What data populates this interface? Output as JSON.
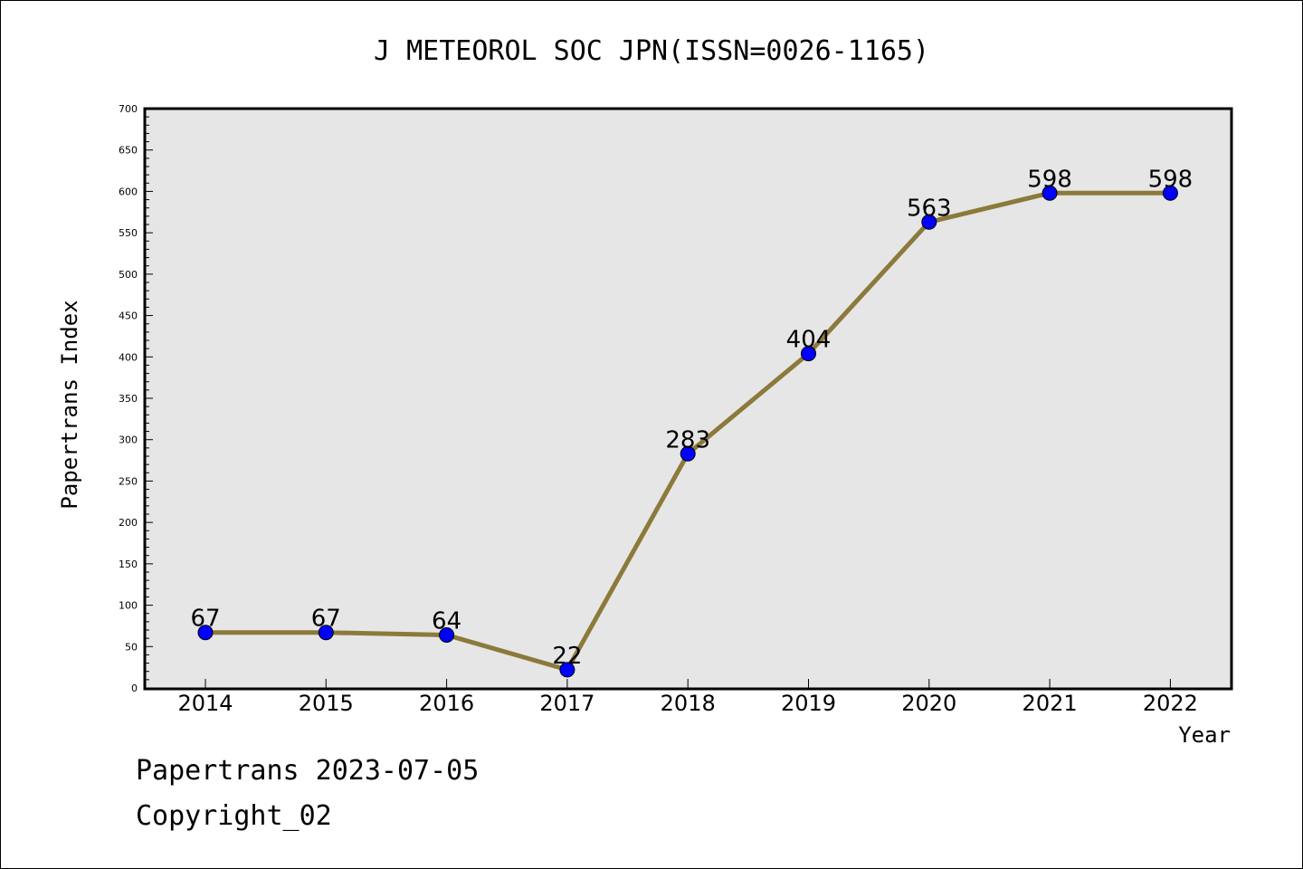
{
  "footer": {
    "line1": "Papertrans 2023-07-05",
    "line2": "Copyright_02"
  },
  "chart_data": {
    "type": "line",
    "title": "J METEOROL SOC JPN(ISSN=0026-1165)",
    "xlabel": "Year",
    "ylabel": "Papertrans Index",
    "categories": [
      "2014",
      "2015",
      "2016",
      "2017",
      "2018",
      "2019",
      "2020",
      "2021",
      "2022"
    ],
    "values": [
      67,
      67,
      64,
      22,
      283,
      404,
      563,
      598,
      598
    ],
    "ylim": [
      0,
      700
    ],
    "yticks": [
      0,
      50,
      100,
      150,
      200,
      250,
      300,
      350,
      400,
      450,
      500,
      550,
      600,
      650,
      700
    ],
    "grid": false,
    "legend": "none",
    "colors": {
      "line": "#8b7a3a",
      "marker": "#0000ff",
      "plot_bg": "#e6e6e6"
    }
  }
}
